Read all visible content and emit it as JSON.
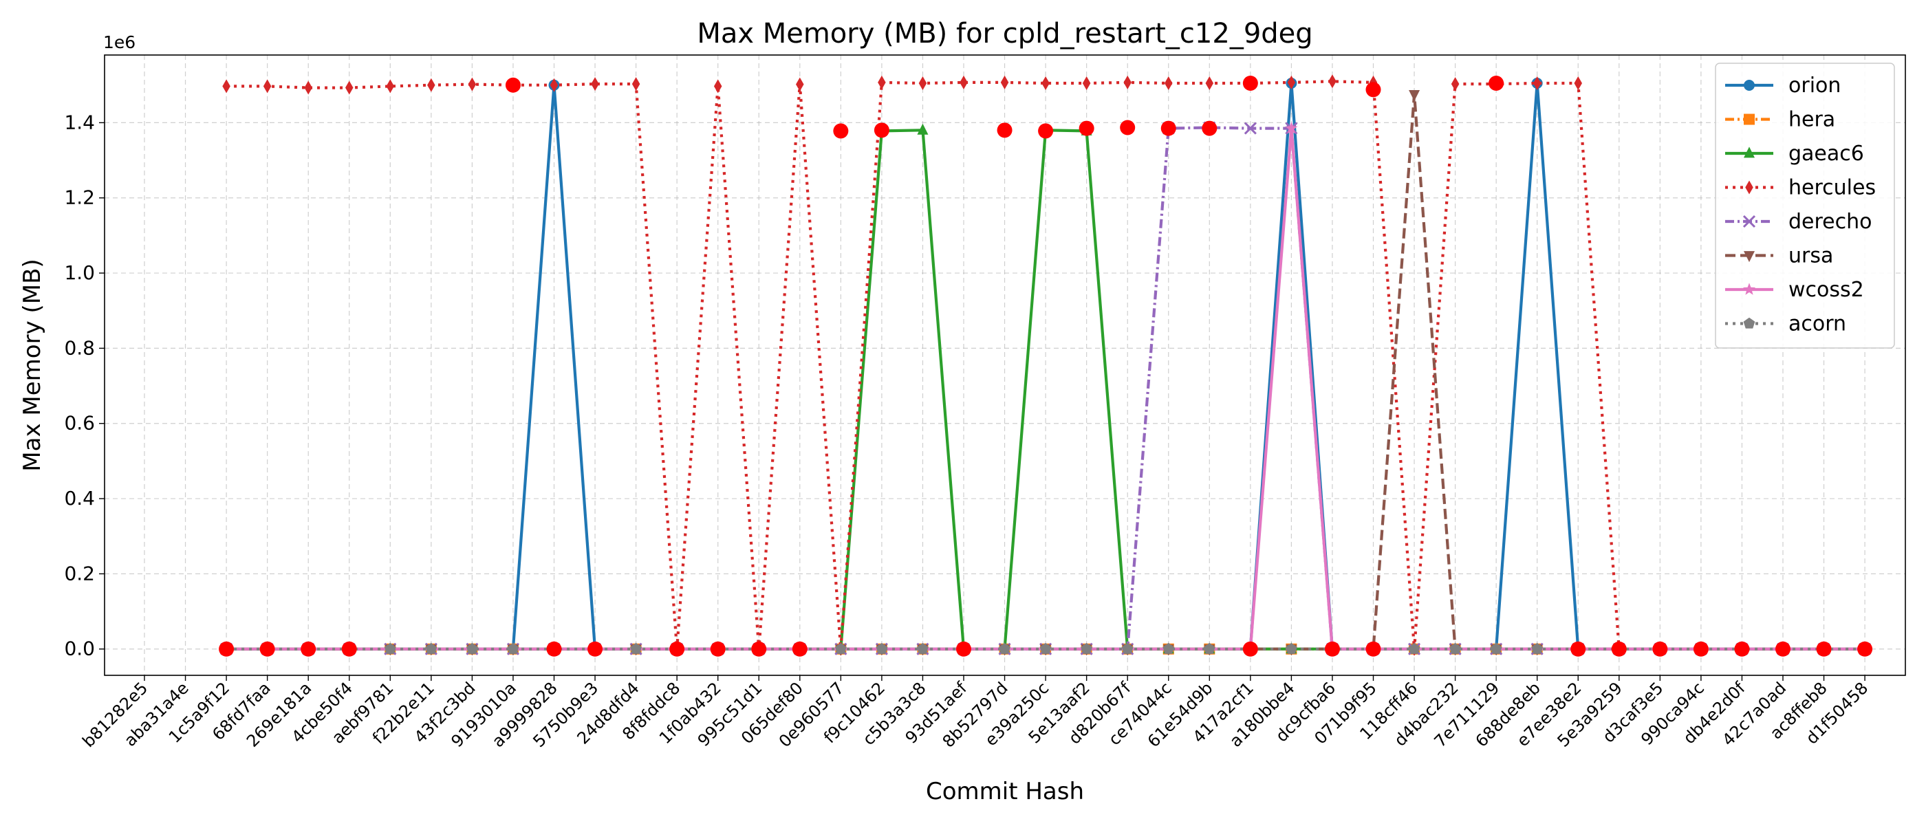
{
  "chart_data": {
    "type": "line",
    "title": "Max Memory (MB) for cpld_restart_c12_9deg",
    "xlabel": "Commit Hash",
    "ylabel": "Max Memory (MB)",
    "y_offset_label": "1e6",
    "ylim": [
      -70000,
      1580000
    ],
    "yticks": [
      0,
      200000,
      400000,
      600000,
      800000,
      1000000,
      1200000,
      1400000
    ],
    "ytick_labels": [
      "0.0",
      "0.2",
      "0.4",
      "0.6",
      "0.8",
      "1.0",
      "1.2",
      "1.4"
    ],
    "grid": true,
    "legend_position": "top-right",
    "categories": [
      "b81282e5",
      "aba31a4e",
      "1c5a9f12",
      "68fd7faa",
      "269e181a",
      "4cbe50f4",
      "aebf9781",
      "f22b2e11",
      "43f2c3bd",
      "9193010a",
      "a9999828",
      "5750b9e3",
      "24d8dfd4",
      "8f8fddc8",
      "1f0ab432",
      "995c51d1",
      "065def80",
      "0e960577",
      "f9c10462",
      "c5b3a3c8",
      "93d51aef",
      "8b52797d",
      "e39a250c",
      "5e13aaf2",
      "d820b67f",
      "ce74044c",
      "61e54d9b",
      "417a2cf1",
      "a180bbe4",
      "dc9cfba6",
      "071b9f95",
      "118cff46",
      "d4bac232",
      "7e711129",
      "688de8eb",
      "e7ee38e2",
      "5e3a9259",
      "d3caf3e5",
      "990ca94c",
      "db4e2d0f",
      "42c7a0ad",
      "ac8ffeb8",
      "d1f50458"
    ],
    "series": [
      {
        "name": "orion",
        "color": "#1f77b4",
        "marker": "circle",
        "dash": "solid",
        "values": [
          null,
          null,
          0,
          0,
          0,
          0,
          0,
          0,
          0,
          0,
          1500000,
          0,
          0,
          0,
          0,
          0,
          0,
          0,
          0,
          0,
          0,
          0,
          0,
          0,
          0,
          0,
          0,
          0,
          1505000,
          0,
          0,
          0,
          0,
          0,
          1505000,
          0,
          0,
          0,
          0,
          0,
          0,
          0,
          0
        ]
      },
      {
        "name": "hera",
        "color": "#ff7f0e",
        "marker": "square",
        "dash": "dashdot",
        "values": [
          null,
          null,
          0,
          0,
          0,
          0,
          0,
          0,
          0,
          0,
          0,
          0,
          0,
          0,
          0,
          0,
          0,
          0,
          0,
          0,
          0,
          0,
          0,
          0,
          0,
          0,
          0,
          0,
          0,
          0,
          0,
          0,
          0,
          0,
          0,
          0,
          0,
          0,
          0,
          0,
          0,
          0,
          0
        ]
      },
      {
        "name": "gaeac6",
        "color": "#2ca02c",
        "marker": "triangle",
        "dash": "solid",
        "values": [
          null,
          null,
          0,
          0,
          0,
          0,
          0,
          0,
          0,
          0,
          0,
          0,
          0,
          0,
          0,
          0,
          0,
          0,
          1378000,
          1380000,
          0,
          0,
          1380000,
          1378000,
          0,
          0,
          0,
          0,
          0,
          0,
          0,
          0,
          0,
          0,
          0,
          0,
          0,
          0,
          0,
          0,
          0,
          0,
          0
        ]
      },
      {
        "name": "hercules",
        "color": "#d62728",
        "marker": "thin_diamond",
        "dash": "dotted",
        "values": [
          null,
          null,
          1497000,
          1497000,
          1493000,
          1493000,
          1497000,
          1500000,
          1502000,
          1500000,
          1500000,
          1503000,
          1503000,
          0,
          1497000,
          0,
          1502000,
          0,
          1507000,
          1505000,
          1507000,
          1507000,
          1505000,
          1505000,
          1507000,
          1505000,
          1505000,
          1505000,
          1507000,
          1510000,
          1507000,
          0,
          1503000,
          1503000,
          1505000,
          1505000,
          0,
          0,
          0,
          0,
          0,
          0,
          0
        ]
      },
      {
        "name": "derecho",
        "color": "#9467bd",
        "marker": "x",
        "dash": "dashdot",
        "values": [
          null,
          null,
          0,
          0,
          0,
          0,
          0,
          0,
          0,
          0,
          0,
          0,
          0,
          0,
          0,
          0,
          0,
          0,
          0,
          0,
          0,
          0,
          0,
          0,
          0,
          1385000,
          1387000,
          1385000,
          1385000,
          0,
          0,
          0,
          0,
          0,
          0,
          0,
          0,
          0,
          0,
          0,
          0,
          0,
          0
        ]
      },
      {
        "name": "ursa",
        "color": "#8c564b",
        "marker": "triangle_down",
        "dash": "dashed",
        "values": [
          null,
          null,
          0,
          0,
          0,
          0,
          0,
          0,
          0,
          0,
          0,
          0,
          0,
          0,
          0,
          0,
          0,
          0,
          0,
          0,
          0,
          0,
          0,
          0,
          0,
          0,
          0,
          0,
          0,
          0,
          0,
          1475000,
          0,
          0,
          0,
          0,
          0,
          0,
          0,
          0,
          0,
          0,
          0
        ]
      },
      {
        "name": "wcoss2",
        "color": "#e377c2",
        "marker": "star",
        "dash": "solid",
        "values": [
          null,
          null,
          0,
          0,
          0,
          0,
          0,
          0,
          0,
          0,
          0,
          0,
          0,
          0,
          0,
          0,
          0,
          0,
          0,
          0,
          0,
          0,
          0,
          0,
          0,
          0,
          0,
          0,
          1385000,
          0,
          0,
          0,
          0,
          0,
          0,
          0,
          0,
          0,
          0,
          0,
          0,
          0,
          0
        ]
      },
      {
        "name": "acorn",
        "color": "#7f7f7f",
        "marker": "pentagon",
        "dash": "dotted",
        "values": [
          null,
          null,
          0,
          0,
          0,
          0,
          0,
          0,
          0,
          0,
          0,
          0,
          0,
          0,
          0,
          0,
          0,
          0,
          0,
          0,
          0,
          0,
          0,
          0,
          0,
          0,
          0,
          0,
          0,
          0,
          0,
          0,
          0,
          0,
          0,
          0,
          0,
          0,
          0,
          0,
          0,
          0,
          0
        ]
      }
    ],
    "highlighted_points": [
      {
        "x": "1c5a9f12",
        "y": 0
      },
      {
        "x": "68fd7faa",
        "y": 0
      },
      {
        "x": "269e181a",
        "y": 0
      },
      {
        "x": "4cbe50f4",
        "y": 0
      },
      {
        "x": "9193010a",
        "y": 1500000
      },
      {
        "x": "a9999828",
        "y": 0
      },
      {
        "x": "5750b9e3",
        "y": 0
      },
      {
        "x": "8f8fddc8",
        "y": 0
      },
      {
        "x": "1f0ab432",
        "y": 0
      },
      {
        "x": "995c51d1",
        "y": 0
      },
      {
        "x": "065def80",
        "y": 0
      },
      {
        "x": "0e960577",
        "y": 1378000
      },
      {
        "x": "f9c10462",
        "y": 1380000
      },
      {
        "x": "93d51aef",
        "y": 0
      },
      {
        "x": "8b52797d",
        "y": 1380000
      },
      {
        "x": "e39a250c",
        "y": 1378000
      },
      {
        "x": "5e13aaf2",
        "y": 1385000
      },
      {
        "x": "d820b67f",
        "y": 1387000
      },
      {
        "x": "ce74044c",
        "y": 1385000
      },
      {
        "x": "61e54d9b",
        "y": 1385000
      },
      {
        "x": "417a2cf1",
        "y": 1505000
      },
      {
        "x": "417a2cf1",
        "y": 0
      },
      {
        "x": "dc9cfba6",
        "y": 0
      },
      {
        "x": "071b9f95",
        "y": 1488000
      },
      {
        "x": "071b9f95",
        "y": 0
      },
      {
        "x": "7e711129",
        "y": 1505000
      },
      {
        "x": "e7ee38e2",
        "y": 0
      },
      {
        "x": "5e3a9259",
        "y": 0
      },
      {
        "x": "d3caf3e5",
        "y": 0
      },
      {
        "x": "990ca94c",
        "y": 0
      },
      {
        "x": "db4e2d0f",
        "y": 0
      },
      {
        "x": "42c7a0ad",
        "y": 0
      },
      {
        "x": "ac8ffeb8",
        "y": 0
      },
      {
        "x": "d1f50458",
        "y": 0
      }
    ]
  }
}
